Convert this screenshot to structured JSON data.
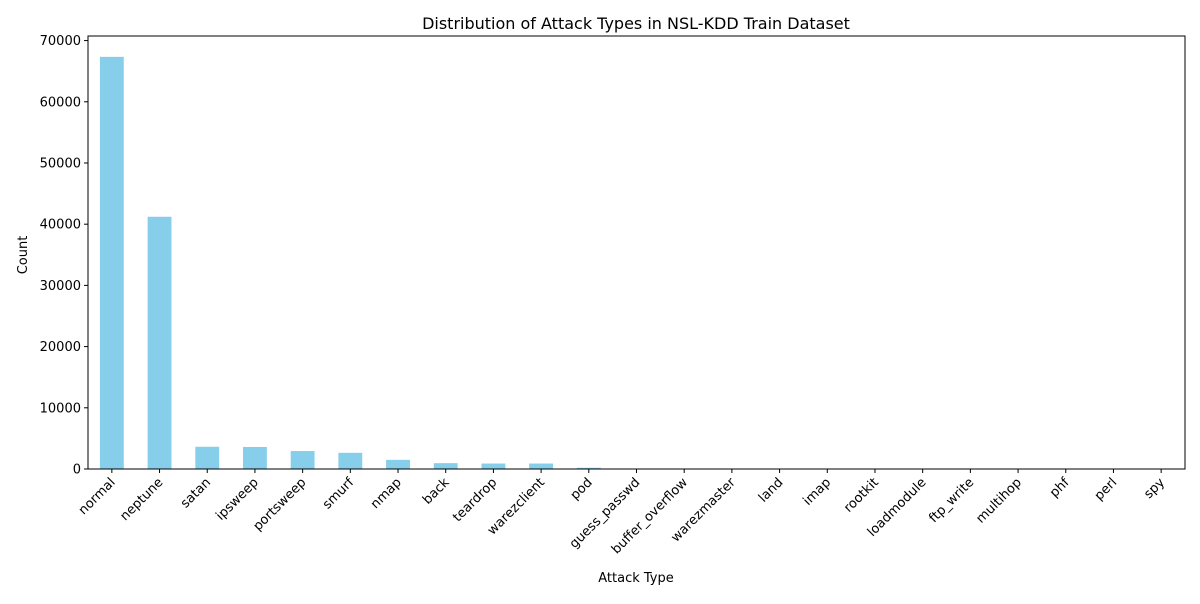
{
  "chart_data": {
    "type": "bar",
    "title": "Distribution of Attack Types in NSL-KDD Train Dataset",
    "xlabel": "Attack Type",
    "ylabel": "Count",
    "categories": [
      "normal",
      "neptune",
      "satan",
      "ipsweep",
      "portsweep",
      "smurf",
      "nmap",
      "back",
      "teardrop",
      "warezclient",
      "pod",
      "guess_passwd",
      "buffer_overflow",
      "warezmaster",
      "land",
      "imap",
      "rootkit",
      "loadmodule",
      "ftp_write",
      "multihop",
      "phf",
      "perl",
      "spy"
    ],
    "values": [
      67343,
      41214,
      3633,
      3599,
      2931,
      2646,
      1493,
      956,
      892,
      890,
      201,
      53,
      30,
      20,
      18,
      11,
      10,
      9,
      8,
      7,
      4,
      3,
      2
    ],
    "ylim": [
      0,
      70749
    ],
    "yticks": [
      0,
      10000,
      20000,
      30000,
      40000,
      50000,
      60000,
      70000
    ],
    "ytick_labels": [
      "0",
      "10000",
      "20000",
      "30000",
      "40000",
      "50000",
      "60000",
      "70000"
    ],
    "bar_color": "#87ceeb",
    "grid": false,
    "legend": "none"
  }
}
